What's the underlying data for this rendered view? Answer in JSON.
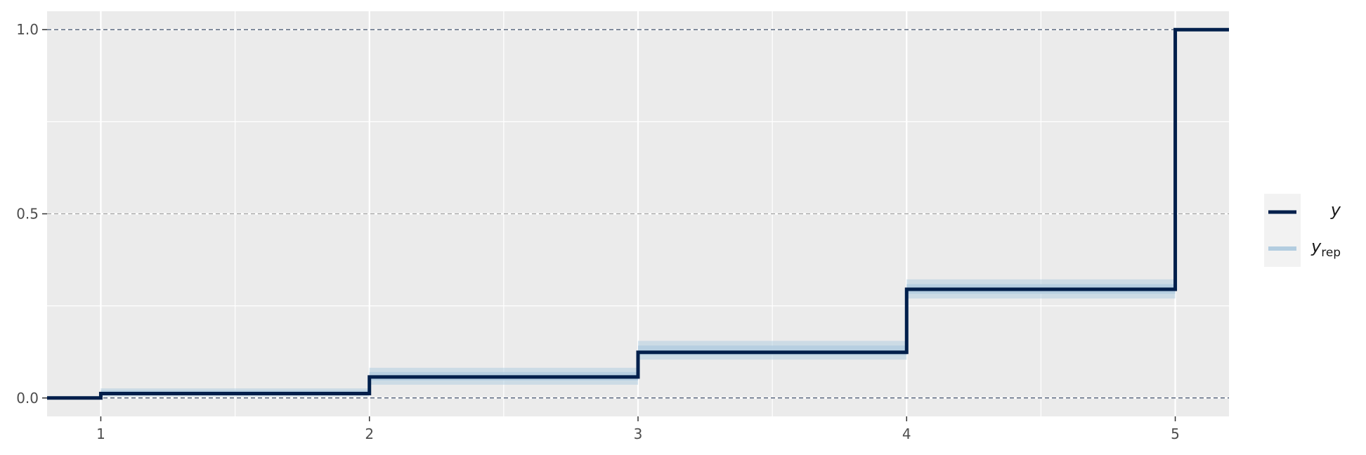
{
  "chart_data": {
    "type": "line",
    "subtype": "step-ecdf",
    "title": "",
    "xlabel": "",
    "ylabel": "",
    "xlim": [
      0.8,
      5.2
    ],
    "ylim": [
      -0.05,
      1.05
    ],
    "x_ticks": [
      "1",
      "2",
      "3",
      "4",
      "5"
    ],
    "x_tick_values": [
      1,
      2,
      3,
      4,
      5
    ],
    "y_ticks": [
      "0.0",
      "0.5",
      "1.0"
    ],
    "y_tick_values": [
      0.0,
      0.5,
      1.0
    ],
    "reference_lines": [
      0.0,
      0.5,
      1.0
    ],
    "grid": true,
    "legend_position": "right",
    "colors": {
      "y": "#011f4b",
      "yrep": "#b3cde0",
      "panel": "#ebebeb",
      "grid": "#ffffff"
    },
    "series": [
      {
        "name": "y",
        "steps": [
          {
            "x": [
              0.8,
              1
            ],
            "y": 0.0
          },
          {
            "x": [
              1,
              2
            ],
            "y": 0.012
          },
          {
            "x": [
              2,
              3
            ],
            "y": 0.057
          },
          {
            "x": [
              3,
              4
            ],
            "y": 0.124
          },
          {
            "x": [
              4,
              5
            ],
            "y": 0.295
          },
          {
            "x": [
              5,
              5.2
            ],
            "y": 1.0
          }
        ]
      },
      {
        "name": "yrep",
        "bands": [
          {
            "x": [
              1,
              2
            ],
            "low": 0.004,
            "high": 0.026
          },
          {
            "x": [
              2,
              3
            ],
            "low": 0.036,
            "high": 0.082
          },
          {
            "x": [
              3,
              4
            ],
            "low": 0.104,
            "high": 0.155
          },
          {
            "x": [
              4,
              5
            ],
            "low": 0.27,
            "high": 0.322
          }
        ]
      }
    ]
  },
  "legend": {
    "items": [
      {
        "label": "y",
        "sub": ""
      },
      {
        "label": "y",
        "sub": "rep"
      }
    ]
  }
}
